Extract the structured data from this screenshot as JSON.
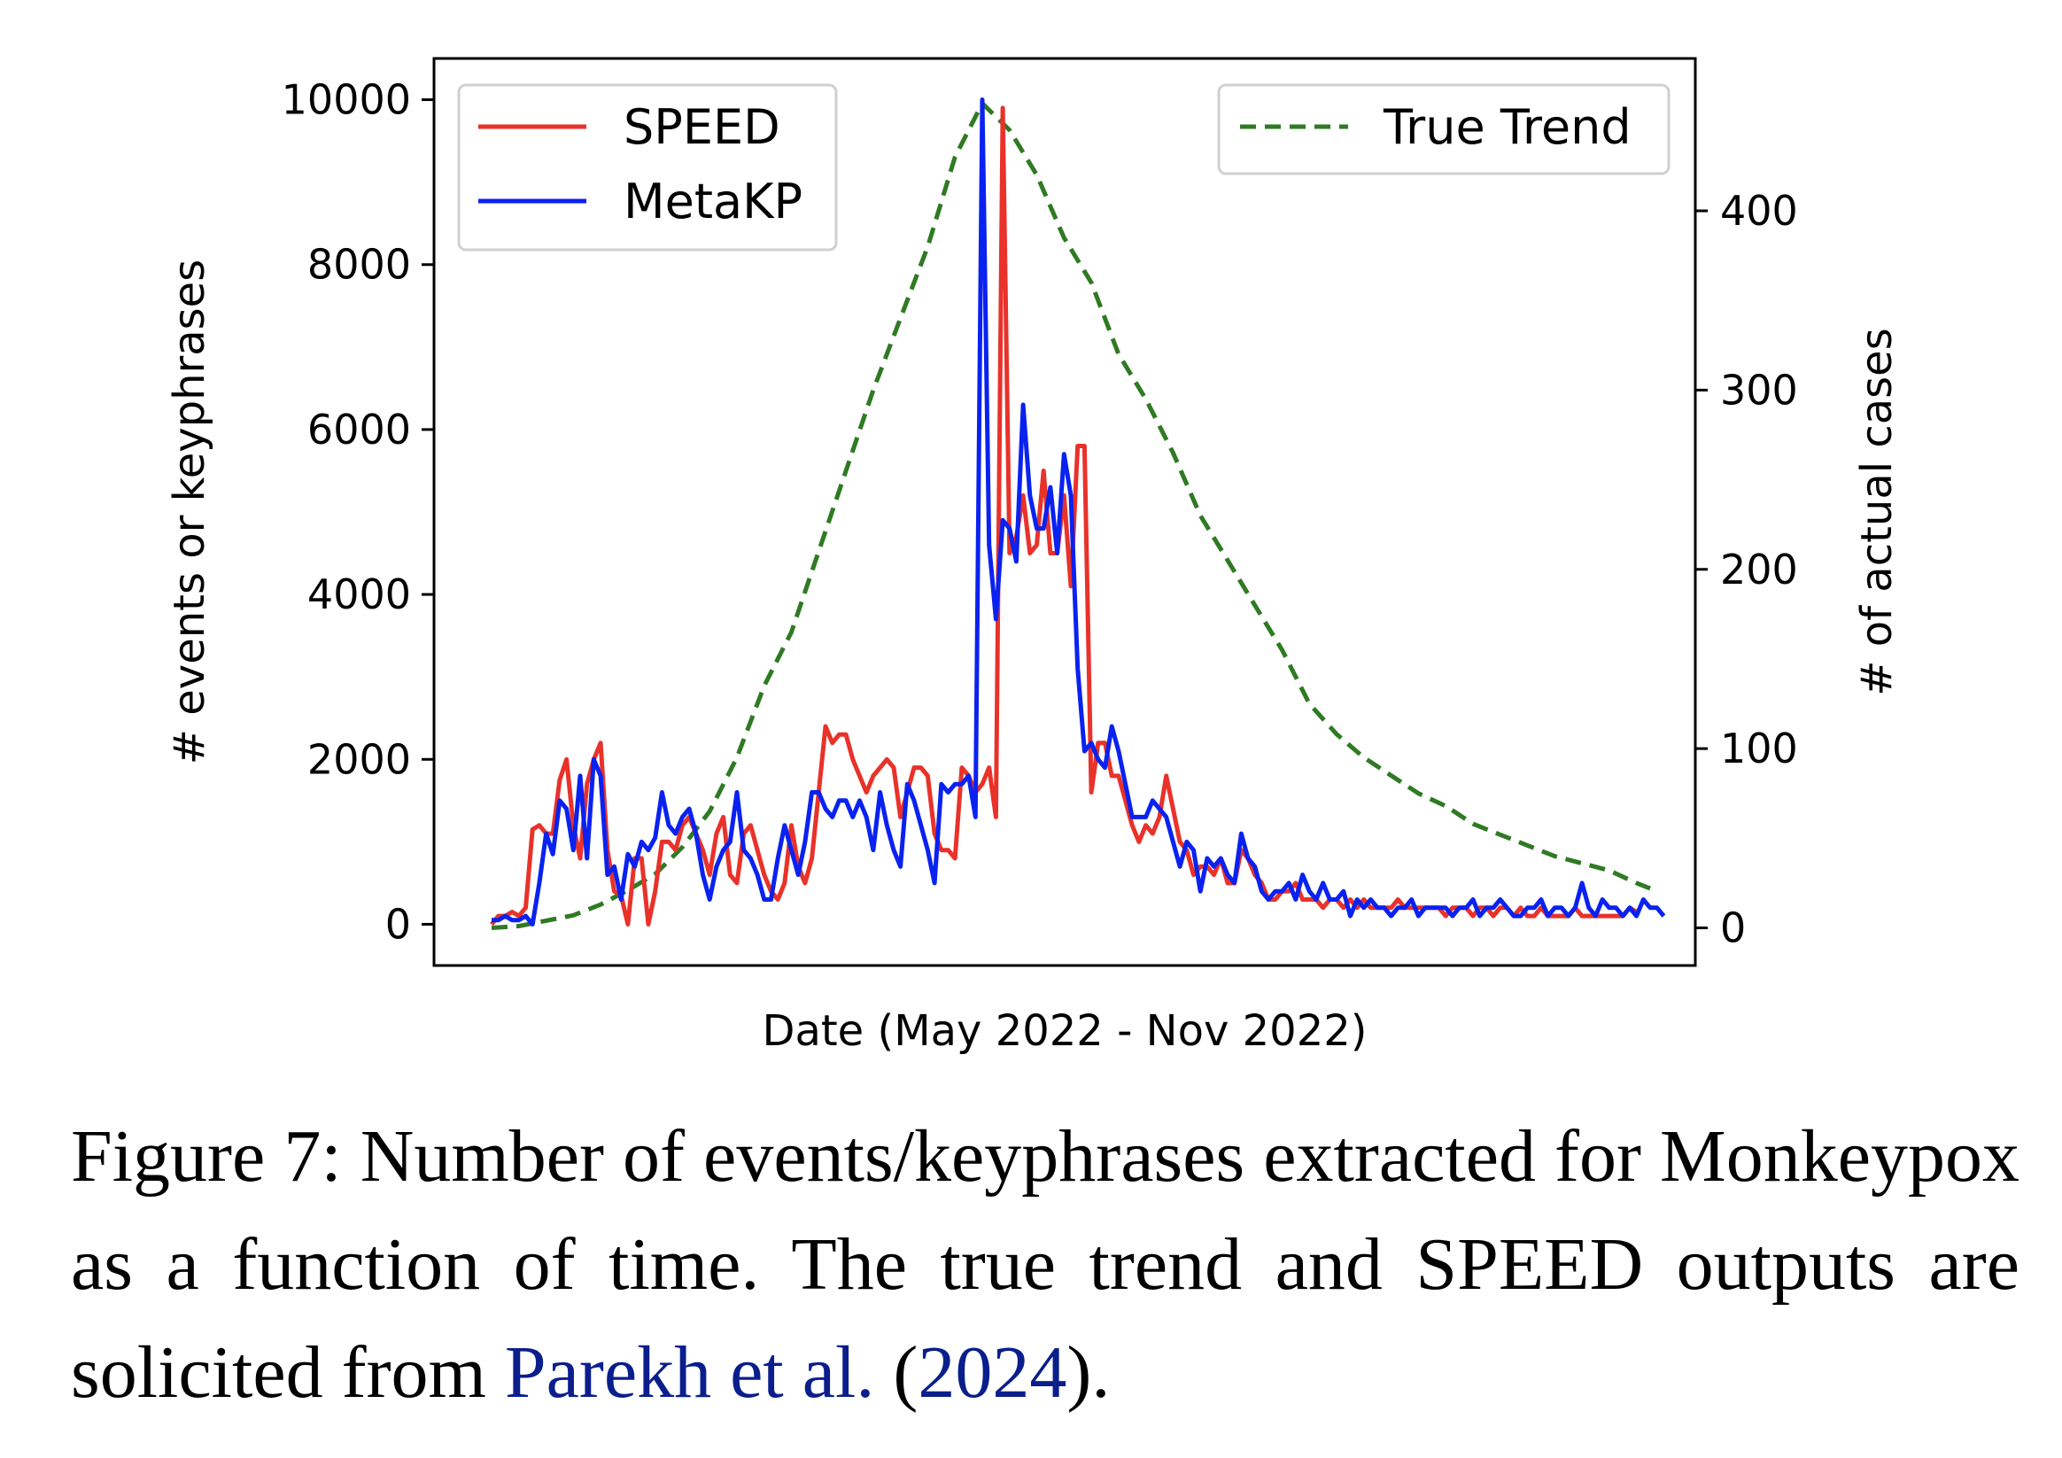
{
  "caption": {
    "figure_label": "Figure 7:",
    "text": "Number of events/keyphrases extracted for Monkeypox as a function of time. The true trend and SPEED outputs are solicited from",
    "cite_author": "Parekh et al.",
    "cite_open": "(",
    "cite_year": "2024",
    "cite_close": ")."
  },
  "chart_data": {
    "type": "line",
    "xlabel": "Date (May 2022 - Nov 2022)",
    "ylabel_left": "# events or keyphrases",
    "ylabel_right": "# of actual cases",
    "x_range": [
      0,
      170
    ],
    "y_left_range": [
      -500,
      10500
    ],
    "y_right_range": [
      -21,
      485
    ],
    "y_left_ticks": [
      "0",
      "2000",
      "4000",
      "6000",
      "8000",
      "10000"
    ],
    "y_right_ticks": [
      "0",
      "100",
      "200",
      "300",
      "400"
    ],
    "grid": false,
    "legend_left": {
      "placement": "top-left",
      "entries": [
        "SPEED",
        "MetaKP"
      ]
    },
    "legend_right": {
      "placement": "top-right",
      "entries": [
        "True Trend"
      ]
    },
    "colors": {
      "SPEED": "#e8322a",
      "MetaKP": "#0a22f0",
      "True Trend": "#2f7a23"
    },
    "series": [
      {
        "name": "SPEED",
        "axis": "left",
        "values": [
          0,
          100,
          100,
          150,
          100,
          200,
          1150,
          1200,
          1100,
          1100,
          1750,
          2000,
          1200,
          800,
          1700,
          2000,
          2200,
          900,
          400,
          350,
          0,
          800,
          800,
          0,
          400,
          1000,
          1000,
          900,
          1200,
          1300,
          1100,
          900,
          600,
          1100,
          1300,
          600,
          500,
          1100,
          1200,
          900,
          600,
          400,
          300,
          500,
          1200,
          700,
          500,
          800,
          1600,
          2400,
          2200,
          2300,
          2300,
          2000,
          1800,
          1600,
          1800,
          1900,
          2000,
          1900,
          1300,
          1600,
          1900,
          1900,
          1800,
          1100,
          900,
          900,
          800,
          1900,
          1800,
          1600,
          1700,
          1900,
          1300,
          9900,
          4500,
          4700,
          5200,
          4500,
          4600,
          5500,
          4500,
          4500,
          5200,
          4100,
          5800,
          5800,
          1600,
          2200,
          2200,
          1800,
          1800,
          1500,
          1200,
          1000,
          1200,
          1100,
          1300,
          1800,
          1400,
          1000,
          900,
          600,
          700,
          700,
          600,
          800,
          500,
          500,
          900,
          800,
          600,
          500,
          300,
          300,
          400,
          400,
          500,
          300,
          300,
          300,
          200,
          300,
          300,
          200,
          300,
          200,
          300,
          200,
          200,
          200,
          200,
          300,
          200,
          200,
          200,
          200,
          200,
          200,
          100,
          200,
          200,
          200,
          100,
          200,
          200,
          100,
          200,
          200,
          100,
          200,
          100,
          100,
          200,
          100,
          100,
          100,
          100,
          200,
          100,
          100,
          100,
          100,
          100,
          100,
          100,
          200,
          150
        ],
        "values_note_x": "index 0..170"
      },
      {
        "name": "MetaKP",
        "axis": "left",
        "values": [
          50,
          50,
          100,
          50,
          50,
          100,
          0,
          500,
          1100,
          850,
          1500,
          1400,
          900,
          1800,
          800,
          2000,
          1800,
          600,
          700,
          300,
          850,
          700,
          1000,
          900,
          1050,
          1600,
          1200,
          1100,
          1300,
          1400,
          1100,
          600,
          300,
          700,
          900,
          1000,
          1600,
          900,
          800,
          600,
          300,
          300,
          800,
          1200,
          900,
          600,
          1000,
          1600,
          1600,
          1400,
          1300,
          1500,
          1500,
          1300,
          1500,
          1300,
          900,
          1600,
          1200,
          900,
          700,
          1700,
          1500,
          1200,
          900,
          500,
          1700,
          1600,
          1700,
          1700,
          1800,
          1300,
          10000,
          4600,
          3700,
          4900,
          4800,
          4400,
          6300,
          5200,
          4800,
          4800,
          5300,
          4500,
          5700,
          5200,
          3100,
          2100,
          2200,
          2000,
          1900,
          2400,
          2100,
          1700,
          1300,
          1300,
          1300,
          1500,
          1400,
          1300,
          1000,
          700,
          1000,
          900,
          400,
          800,
          700,
          800,
          600,
          500,
          1100,
          800,
          700,
          400,
          300,
          400,
          400,
          500,
          300,
          600,
          400,
          300,
          500,
          300,
          300,
          400,
          100,
          300,
          200,
          300,
          200,
          200,
          100,
          200,
          200,
          300,
          100,
          200,
          200,
          200,
          200,
          100,
          200,
          200,
          300,
          100,
          200,
          200,
          300,
          200,
          100,
          100,
          200,
          200,
          300,
          100,
          200,
          200,
          100,
          200,
          500,
          200,
          100,
          300,
          200,
          200,
          100,
          200,
          100,
          300,
          200,
          200,
          100
        ],
        "values_note_x": "index 0..170"
      },
      {
        "name": "True Trend",
        "axis": "right",
        "dashed": true,
        "x": [
          0,
          4,
          8,
          12,
          16,
          20,
          24,
          28,
          32,
          36,
          40,
          44,
          48,
          52,
          56,
          60,
          64,
          68,
          72,
          76,
          80,
          84,
          88,
          92,
          96,
          100,
          104,
          108,
          112,
          116,
          120,
          124,
          128,
          132,
          136,
          140,
          144,
          148,
          152,
          156,
          160,
          164,
          168,
          170
        ],
        "values": [
          0,
          1,
          4,
          7,
          13,
          21,
          30,
          45,
          65,
          95,
          135,
          165,
          210,
          255,
          300,
          340,
          380,
          430,
          460,
          445,
          420,
          385,
          360,
          320,
          295,
          265,
          230,
          205,
          180,
          155,
          125,
          108,
          95,
          85,
          75,
          68,
          58,
          52,
          46,
          40,
          36,
          32,
          25,
          22
        ]
      }
    ]
  }
}
